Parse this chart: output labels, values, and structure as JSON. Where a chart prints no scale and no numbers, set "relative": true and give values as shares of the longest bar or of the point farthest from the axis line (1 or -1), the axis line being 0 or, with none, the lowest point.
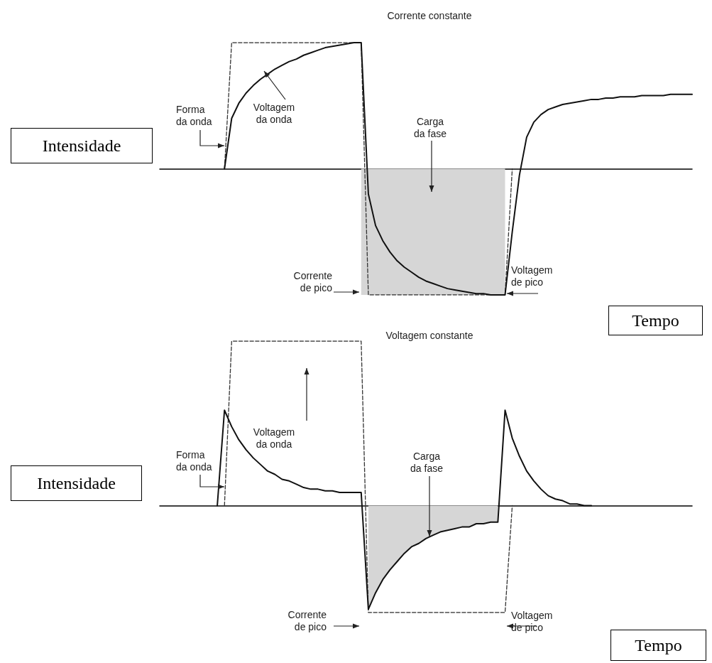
{
  "chart_data": [
    {
      "type": "line",
      "title": "Corrente constante",
      "ylabel": "Intensidade",
      "xlabel": "Tempo",
      "relative": true,
      "grid": false,
      "marker": "none",
      "annotations": [
        "Forma da onda",
        "Voltagem da onda",
        "Carga da fase",
        "Corrente de pico",
        "Voltagem de pico"
      ],
      "categories": [
        null,
        null,
        null,
        null,
        null,
        null,
        null,
        null,
        null,
        null,
        null,
        null,
        null,
        null,
        null,
        null,
        null,
        null,
        null,
        null,
        null,
        null,
        null,
        null,
        null,
        null,
        null,
        null,
        null,
        null,
        null,
        null,
        null,
        null,
        null,
        null,
        null,
        null,
        null,
        null,
        null,
        null,
        null,
        null,
        null,
        null,
        null,
        null,
        null,
        null,
        null,
        null,
        null,
        null,
        null,
        null,
        null,
        null,
        null,
        null,
        null,
        null,
        null,
        null,
        null,
        null,
        null,
        null,
        null,
        null,
        null,
        null,
        null,
        null,
        null
      ],
      "series": [
        {
          "type": "area",
          "color": "#d6d6d6",
          "values": [
            null,
            null,
            null,
            null,
            null,
            null,
            null,
            null,
            null,
            null,
            null,
            null,
            null,
            null,
            null,
            null,
            null,
            null,
            null,
            null,
            null,
            null,
            null,
            null,
            null,
            null,
            null,
            null,
            -1,
            -1,
            -1,
            -1,
            -1,
            -1,
            -1,
            -1,
            -1,
            -1,
            -1,
            -1,
            -1,
            -1,
            -1,
            -1,
            -1,
            -1,
            -1,
            -1,
            -1,
            null,
            null,
            null,
            null,
            null,
            null,
            null,
            null,
            null,
            null,
            null,
            null,
            null,
            null,
            null,
            null,
            null,
            null,
            null,
            null,
            null,
            null,
            null,
            null,
            null,
            null
          ]
        },
        {
          "type": "line",
          "color": "#333333",
          "line_style": "dashed",
          "values": [
            null,
            null,
            null,
            null,
            null,
            null,
            null,
            null,
            null,
            0,
            1,
            1,
            1,
            1,
            1,
            1,
            1,
            1,
            1,
            1,
            1,
            1,
            1,
            1,
            1,
            1,
            1,
            1,
            1,
            -1,
            -1,
            -1,
            -1,
            -1,
            -1,
            -1,
            -1,
            -1,
            -1,
            -1,
            -1,
            -1,
            -1,
            -1,
            -1,
            -1,
            -1,
            -1,
            -1,
            0,
            null,
            null,
            null,
            null,
            null,
            null,
            null,
            null,
            null,
            null,
            null,
            null,
            null,
            null,
            null,
            null,
            null,
            null,
            null,
            null,
            null,
            null,
            null,
            null,
            null
          ]
        },
        {
          "type": "line",
          "color": "#111111",
          "line_style": "solid",
          "values": [
            null,
            null,
            null,
            null,
            null,
            null,
            null,
            null,
            null,
            0,
            0.4,
            0.52,
            0.6,
            0.66,
            0.71,
            0.75,
            0.79,
            0.82,
            0.85,
            0.87,
            0.9,
            0.92,
            0.94,
            0.96,
            0.97,
            0.98,
            0.99,
            1,
            1,
            -0.2,
            -0.45,
            -0.57,
            -0.66,
            -0.73,
            -0.78,
            -0.82,
            -0.86,
            -0.89,
            -0.91,
            -0.93,
            -0.95,
            -0.96,
            -0.97,
            -0.98,
            -0.99,
            -0.99,
            -1,
            -1,
            -1,
            -0.5,
            -0.05,
            0.25,
            0.37,
            0.43,
            0.47,
            0.49,
            0.51,
            0.52,
            0.53,
            0.54,
            0.55,
            0.55,
            0.56,
            0.56,
            0.57,
            0.57,
            0.57,
            0.58,
            0.58,
            0.58,
            0.58,
            0.59,
            0.59,
            0.59,
            0.59
          ]
        }
      ]
    },
    {
      "type": "line",
      "title": "Voltagem constante",
      "ylabel": "Intensidade",
      "xlabel": "Tempo",
      "relative": true,
      "grid": false,
      "marker": "none",
      "annotations": [
        "Forma da onda",
        "Voltagem da onda",
        "Carga da fase",
        "Corrente de pico",
        "Voltagem de pico"
      ],
      "categories": [
        null,
        null,
        null,
        null,
        null,
        null,
        null,
        null,
        null,
        null,
        null,
        null,
        null,
        null,
        null,
        null,
        null,
        null,
        null,
        null,
        null,
        null,
        null,
        null,
        null,
        null,
        null,
        null,
        null,
        null,
        null,
        null,
        null,
        null,
        null,
        null,
        null,
        null,
        null,
        null,
        null,
        null,
        null,
        null,
        null,
        null,
        null,
        null,
        null,
        null,
        null,
        null,
        null,
        null,
        null,
        null,
        null,
        null,
        null,
        null,
        null,
        null,
        null,
        null,
        null,
        null,
        null,
        null,
        null,
        null,
        null,
        null,
        null,
        null,
        null
      ],
      "series": [
        {
          "type": "area",
          "color": "#d6d6d6",
          "values": [
            null,
            null,
            null,
            null,
            null,
            null,
            null,
            null,
            null,
            null,
            null,
            null,
            null,
            null,
            null,
            null,
            null,
            null,
            null,
            null,
            null,
            null,
            null,
            null,
            null,
            null,
            null,
            null,
            null,
            -0.63,
            -0.53,
            -0.45,
            -0.39,
            -0.34,
            -0.29,
            -0.25,
            -0.23,
            -0.2,
            -0.18,
            -0.16,
            -0.15,
            -0.14,
            -0.13,
            -0.13,
            -0.11,
            -0.11,
            -0.1,
            -0.1,
            null,
            null,
            null,
            null,
            null,
            null,
            null,
            null,
            null,
            null,
            null,
            null,
            null,
            null,
            null,
            null,
            null,
            null,
            null,
            null,
            null,
            null,
            null,
            null,
            null,
            null,
            null
          ]
        },
        {
          "type": "line",
          "color": "#333333",
          "line_style": "dashed",
          "values": [
            null,
            null,
            null,
            null,
            null,
            null,
            null,
            null,
            null,
            0,
            1,
            1,
            1,
            1,
            1,
            1,
            1,
            1,
            1,
            1,
            1,
            1,
            1,
            1,
            1,
            1,
            1,
            1,
            1,
            -0.65,
            -0.65,
            -0.65,
            -0.65,
            -0.65,
            -0.65,
            -0.65,
            -0.65,
            -0.65,
            -0.65,
            -0.65,
            -0.65,
            -0.65,
            -0.65,
            -0.65,
            -0.65,
            -0.65,
            -0.65,
            -0.65,
            -0.65,
            0,
            null,
            null,
            null,
            null,
            null,
            null,
            null,
            null,
            null,
            null,
            null,
            null,
            null,
            null,
            null,
            null,
            null,
            null,
            null,
            null,
            null,
            null,
            null,
            null,
            null
          ]
        },
        {
          "type": "line",
          "color": "#111111",
          "line_style": "solid",
          "values": [
            null,
            null,
            null,
            null,
            null,
            null,
            null,
            null,
            0,
            0.58,
            0.48,
            0.4,
            0.34,
            0.29,
            0.25,
            0.21,
            0.19,
            0.16,
            0.15,
            0.13,
            0.11,
            0.1,
            0.1,
            0.09,
            0.09,
            0.08,
            0.08,
            0.08,
            0.08,
            -0.63,
            -0.53,
            -0.45,
            -0.39,
            -0.34,
            -0.29,
            -0.25,
            -0.23,
            -0.2,
            -0.18,
            -0.16,
            -0.15,
            -0.14,
            -0.13,
            -0.13,
            -0.11,
            -0.11,
            -0.1,
            -0.1,
            0.58,
            0.41,
            0.3,
            0.21,
            0.15,
            0.1,
            0.06,
            0.04,
            0.03,
            0.01,
            0.01,
            0,
            0,
            null,
            null,
            null,
            null,
            null,
            null,
            null,
            null,
            null,
            null,
            null,
            null,
            null,
            null
          ]
        }
      ]
    }
  ]
}
